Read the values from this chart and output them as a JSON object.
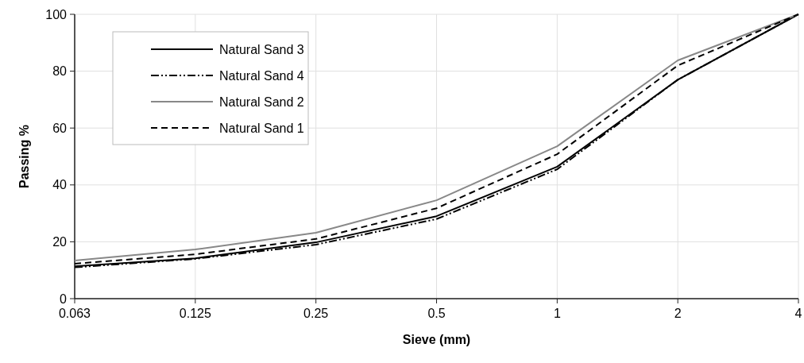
{
  "chart_data": {
    "type": "line",
    "xlabel": "Sieve (mm)",
    "ylabel": "Passing %",
    "categories": [
      "0.063",
      "0.125",
      "0.25",
      "0.5",
      "1",
      "2",
      "4"
    ],
    "ylim": [
      0,
      100
    ],
    "yticks": [
      0,
      20,
      40,
      60,
      80,
      100
    ],
    "grid": true,
    "legend": "top left",
    "marker": "none",
    "series": [
      {
        "name": "Natural Sand 3",
        "color": "#000000",
        "line_style": "solid",
        "values": [
          11.4,
          14.2,
          19.8,
          29,
          46.4,
          77,
          100
        ]
      },
      {
        "name": "Natural Sand 4",
        "color": "#000000",
        "line_style": "dashdot",
        "values": [
          11,
          14,
          19,
          28,
          45.5,
          77,
          100
        ]
      },
      {
        "name": "Natural Sand 2",
        "color": "#888888",
        "line_style": "solid",
        "values": [
          13.4,
          17.3,
          23.2,
          34.6,
          53.6,
          83.8,
          100
        ]
      },
      {
        "name": "Natural Sand 1",
        "color": "#000000",
        "line_style": "dashed",
        "values": [
          12.3,
          15.6,
          21,
          31.8,
          50.8,
          82,
          100
        ]
      }
    ]
  }
}
